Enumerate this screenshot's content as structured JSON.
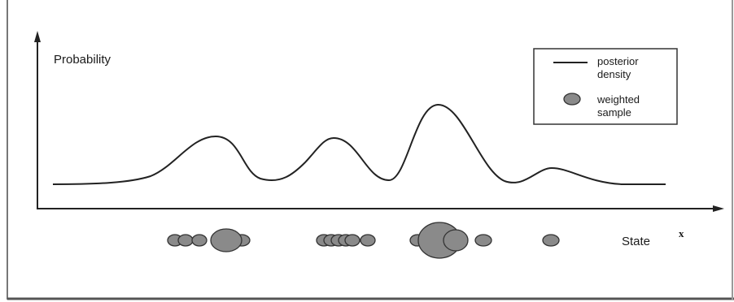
{
  "figure": {
    "y_axis_label": "Probability",
    "state_label": "State",
    "x_axis_symbol": "x",
    "legend": {
      "density_label_line1": "posterior",
      "density_label_line2": "density",
      "sample_label_line1": "weighted",
      "sample_label_line2": "sample"
    }
  },
  "colors": {
    "curve": "#222222",
    "sample_fill": "#8a8a8a",
    "sample_stroke": "#333333",
    "frame": "#444444",
    "axis": "#222222"
  }
}
